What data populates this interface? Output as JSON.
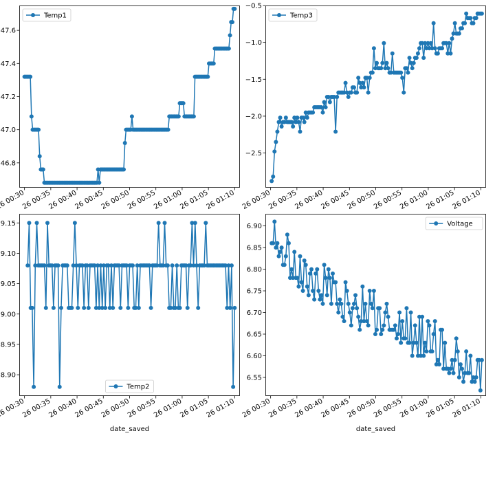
{
  "figure": {
    "background": "#ffffff",
    "line_color": "#1f77b4"
  },
  "chart_data": [
    {
      "type": "line",
      "series": [
        {
          "name": "Temp1",
          "values": [
            47.32,
            47.32,
            47.32,
            47.32,
            47.32,
            47.32,
            47.08,
            47.0,
            47.0,
            47.0,
            47.0,
            47.0,
            47.0,
            46.84,
            46.76,
            46.76,
            46.76,
            46.68,
            46.68,
            46.68,
            46.68,
            46.68,
            46.68,
            46.68,
            46.68,
            46.68,
            46.68,
            46.68,
            46.68,
            46.68,
            46.68,
            46.68,
            46.68,
            46.68,
            46.68,
            46.68,
            46.68,
            46.68,
            46.68,
            46.68,
            46.68,
            46.68,
            46.68,
            46.68,
            46.68,
            46.68,
            46.68,
            46.68,
            46.68,
            46.68,
            46.68,
            46.68,
            46.68,
            46.68,
            46.68,
            46.68,
            46.68,
            46.68,
            46.68,
            46.68,
            46.68,
            46.68,
            46.68,
            46.76,
            46.68,
            46.76,
            46.76,
            46.76,
            46.76,
            46.76,
            46.76,
            46.76,
            46.76,
            46.76,
            46.76,
            46.76,
            46.76,
            46.76,
            46.76,
            46.76,
            46.76,
            46.76,
            46.76,
            46.76,
            46.76,
            46.76,
            46.92,
            47.0,
            47.0,
            47.0,
            47.0,
            47.0,
            47.08,
            47.0,
            47.0,
            47.0,
            47.0,
            47.0,
            47.0,
            47.0,
            47.0,
            47.0,
            47.0,
            47.0,
            47.0,
            47.0,
            47.0,
            47.0,
            47.0,
            47.0,
            47.0,
            47.0,
            47.0,
            47.0,
            47.0,
            47.0,
            47.0,
            47.0,
            47.0,
            47.0,
            47.0,
            47.0,
            47.0,
            47.0,
            47.08,
            47.08,
            47.08,
            47.08,
            47.08,
            47.08,
            47.08,
            47.08,
            47.08,
            47.16,
            47.16,
            47.16,
            47.16,
            47.08,
            47.08,
            47.08,
            47.08,
            47.08,
            47.08,
            47.08,
            47.08,
            47.08,
            47.32,
            47.32,
            47.32,
            47.32,
            47.32,
            47.32,
            47.32,
            47.32,
            47.32,
            47.32,
            47.32,
            47.32,
            47.4,
            47.4,
            47.4,
            47.4,
            47.4,
            47.49,
            47.49,
            47.49,
            47.49,
            47.49,
            47.49,
            47.49,
            47.49,
            47.49,
            47.49,
            47.49,
            47.49,
            47.49,
            47.57,
            47.65,
            47.65,
            47.73,
            47.73
          ]
        }
      ],
      "legend": "upper left",
      "x_ticks": [
        "26 00:30",
        "26 00:35",
        "26 00:40",
        "26 00:45",
        "26 00:50",
        "26 00:55",
        "26 01:00",
        "26 01:05",
        "26 01:10"
      ],
      "x_range_minutes": [
        29.0,
        71.0
      ],
      "series_start_minute": 30.0,
      "series_end_minute": 70.0,
      "ylim": [
        46.65,
        47.75
      ],
      "y_ticks": [
        46.8,
        47.0,
        47.2,
        47.4,
        47.6
      ],
      "y_tick_labels": [
        "46.8",
        "47.0",
        "47.2",
        "47.4",
        "47.6"
      ],
      "xlabel": ""
    },
    {
      "type": "line",
      "series": [
        {
          "name": "Temp3",
          "values": [
            -2.88,
            -2.82,
            -2.48,
            -2.35,
            -2.21,
            -2.08,
            -2.02,
            -2.14,
            -2.08,
            -2.08,
            -2.02,
            -2.08,
            -2.08,
            -2.08,
            -2.08,
            -2.14,
            -2.02,
            -2.08,
            -2.02,
            -2.08,
            -2.21,
            -2.02,
            -2.02,
            -2.08,
            -1.95,
            -2.02,
            -1.95,
            -1.95,
            -1.95,
            -1.95,
            -1.88,
            -1.88,
            -1.88,
            -1.88,
            -1.88,
            -1.88,
            -1.95,
            -1.81,
            -1.88,
            -1.74,
            -1.74,
            -1.81,
            -1.74,
            -1.74,
            -1.74,
            -2.21,
            -1.74,
            -1.68,
            -1.68,
            -1.68,
            -1.68,
            -1.68,
            -1.55,
            -1.68,
            -1.74,
            -1.68,
            -1.68,
            -1.61,
            -1.61,
            -1.68,
            -1.68,
            -1.48,
            -1.55,
            -1.61,
            -1.55,
            -1.61,
            -1.48,
            -1.48,
            -1.68,
            -1.48,
            -1.41,
            -1.41,
            -1.08,
            -1.35,
            -1.28,
            -1.35,
            -1.35,
            -1.35,
            -1.28,
            -1.01,
            -1.35,
            -1.28,
            -1.35,
            -1.41,
            -1.41,
            -1.15,
            -1.41,
            -1.41,
            -1.41,
            -1.41,
            -1.41,
            -1.41,
            -1.48,
            -1.68,
            -1.35,
            -1.35,
            -1.41,
            -1.21,
            -1.28,
            -1.35,
            -1.28,
            -1.21,
            -1.21,
            -1.15,
            -1.08,
            -1.01,
            -1.01,
            -1.21,
            -1.01,
            -1.08,
            -1.01,
            -1.08,
            -1.01,
            -1.08,
            -0.74,
            -1.08,
            -1.15,
            -1.15,
            -1.08,
            -1.08,
            -1.08,
            -1.01,
            -1.01,
            -1.01,
            -1.15,
            -1.01,
            -1.15,
            -0.95,
            -0.88,
            -0.74,
            -0.88,
            -0.88,
            -0.88,
            -0.81,
            -0.81,
            -0.74,
            -0.74,
            -0.61,
            -0.67,
            -0.67,
            -0.67,
            -0.74,
            -0.74,
            -0.67,
            -0.67,
            -0.61,
            -0.61,
            -0.61,
            -0.61
          ]
        }
      ],
      "legend": "upper left",
      "x_ticks": [
        "26 00:30",
        "26 00:35",
        "26 00:40",
        "26 00:45",
        "26 00:50",
        "26 00:55",
        "26 01:00",
        "26 01:05",
        "26 01:10"
      ],
      "x_range_minutes": [
        29.0,
        71.0
      ],
      "series_start_minute": 30.2,
      "series_end_minute": 70.2,
      "ylim": [
        -2.97,
        -0.5
      ],
      "y_ticks": [
        -2.5,
        -2.0,
        -1.5,
        -1.0,
        -0.5
      ],
      "y_tick_labels": [
        "−2.5",
        "−2.0",
        "−1.5",
        "−1.0",
        "−0.5"
      ],
      "xlabel": ""
    },
    {
      "type": "line",
      "series": [
        {
          "name": "Temp2",
          "values": [
            9.08,
            9.15,
            9.01,
            9.01,
            8.88,
            9.08,
            9.15,
            9.08,
            9.08,
            9.08,
            9.08,
            9.08,
            9.01,
            9.15,
            9.08,
            9.08,
            9.08,
            9.01,
            9.08,
            9.08,
            9.08,
            8.88,
            9.01,
            9.08,
            9.08,
            9.08,
            9.08,
            9.01,
            9.01,
            9.01,
            9.08,
            9.15,
            9.08,
            9.01,
            9.08,
            9.08,
            9.08,
            9.01,
            9.08,
            9.08,
            9.01,
            9.08,
            9.08,
            9.08,
            9.08,
            9.01,
            9.08,
            9.01,
            9.08,
            9.01,
            9.08,
            9.01,
            9.08,
            9.08,
            9.01,
            9.08,
            9.01,
            9.08,
            9.08,
            9.08,
            9.08,
            9.01,
            9.08,
            9.08,
            9.08,
            9.08,
            9.01,
            9.08,
            9.08,
            9.08,
            9.01,
            9.01,
            9.08,
            9.01,
            9.08,
            9.08,
            9.08,
            9.08,
            9.08,
            9.08,
            9.08,
            9.01,
            9.08,
            9.08,
            9.08,
            9.08,
            9.15,
            9.08,
            9.08,
            9.08,
            9.15,
            9.08,
            9.08,
            9.01,
            9.01,
            9.08,
            9.01,
            9.01,
            9.08,
            9.01,
            9.01,
            9.08,
            9.08,
            9.08,
            9.08,
            9.01,
            9.08,
            9.08,
            9.15,
            9.08,
            9.15,
            9.08,
            9.01,
            9.08,
            9.08,
            9.08,
            9.08,
            9.15,
            9.08,
            9.08,
            9.08,
            9.08,
            9.08,
            9.08,
            9.08,
            9.08,
            9.08,
            9.08,
            9.08,
            9.08,
            9.08,
            9.01,
            9.08,
            9.01,
            9.08,
            8.88,
            9.01
          ]
        }
      ],
      "legend": "lower center",
      "x_ticks": [
        "26 00:30",
        "26 00:35",
        "26 00:40",
        "26 00:45",
        "26 00:50",
        "26 00:55",
        "26 01:00",
        "26 01:05",
        "26 01:10"
      ],
      "x_range_minutes": [
        29.0,
        71.0
      ],
      "series_start_minute": 30.6,
      "series_end_minute": 70.0,
      "ylim": [
        8.865,
        9.165
      ],
      "y_ticks": [
        8.9,
        8.95,
        9.0,
        9.05,
        9.1,
        9.15
      ],
      "y_tick_labels": [
        "8.90",
        "8.95",
        "9.00",
        "9.05",
        "9.10",
        "9.15"
      ],
      "xlabel": "date_saved"
    },
    {
      "type": "line",
      "series": [
        {
          "name": "Voltage",
          "values": [
            6.86,
            6.86,
            6.91,
            6.85,
            6.86,
            6.83,
            6.84,
            6.85,
            6.81,
            6.81,
            6.83,
            6.88,
            6.86,
            6.78,
            6.8,
            6.78,
            6.84,
            6.78,
            6.78,
            6.76,
            6.83,
            6.77,
            6.75,
            6.82,
            6.81,
            6.76,
            6.74,
            6.79,
            6.8,
            6.75,
            6.73,
            6.79,
            6.8,
            6.75,
            6.73,
            6.74,
            6.72,
            6.81,
            6.78,
            6.74,
            6.8,
            6.78,
            6.72,
            6.79,
            6.77,
            6.77,
            6.72,
            6.7,
            6.73,
            6.72,
            6.69,
            6.68,
            6.77,
            6.75,
            6.72,
            6.7,
            6.67,
            6.71,
            6.72,
            6.74,
            6.71,
            6.69,
            6.66,
            6.68,
            6.76,
            6.68,
            6.72,
            6.68,
            6.67,
            6.75,
            6.72,
            6.71,
            6.75,
            6.65,
            6.66,
            6.71,
            6.71,
            6.65,
            6.66,
            6.67,
            6.7,
            6.72,
            6.69,
            6.66,
            6.66,
            6.66,
            6.66,
            6.67,
            6.64,
            6.65,
            6.7,
            6.63,
            6.68,
            6.64,
            6.64,
            6.71,
            6.63,
            6.63,
            6.7,
            6.6,
            6.63,
            6.67,
            6.63,
            6.6,
            6.69,
            6.6,
            6.69,
            6.6,
            6.63,
            6.61,
            6.68,
            6.67,
            6.61,
            6.61,
            6.65,
            6.68,
            6.58,
            6.59,
            6.58,
            6.66,
            6.66,
            6.57,
            6.63,
            6.57,
            6.57,
            6.56,
            6.57,
            6.59,
            6.56,
            6.59,
            6.64,
            6.61,
            6.55,
            6.58,
            6.57,
            6.54,
            6.56,
            6.61,
            6.56,
            6.56,
            6.6,
            6.54,
            6.55,
            6.54,
            6.55,
            6.59,
            6.59,
            6.52,
            6.59
          ]
        }
      ],
      "legend": "upper right",
      "x_ticks": [
        "26 00:30",
        "26 00:35",
        "26 00:40",
        "26 00:45",
        "26 00:50",
        "26 00:55",
        "26 01:00",
        "26 01:05",
        "26 01:10"
      ],
      "x_range_minutes": [
        29.0,
        71.0
      ],
      "series_start_minute": 30.2,
      "series_end_minute": 70.2,
      "ylim": [
        6.507,
        6.928
      ],
      "y_ticks": [
        6.55,
        6.6,
        6.65,
        6.7,
        6.75,
        6.8,
        6.85,
        6.9
      ],
      "y_tick_labels": [
        "6.55",
        "6.60",
        "6.65",
        "6.70",
        "6.75",
        "6.80",
        "6.85",
        "6.90"
      ],
      "xlabel": "date_saved"
    }
  ]
}
